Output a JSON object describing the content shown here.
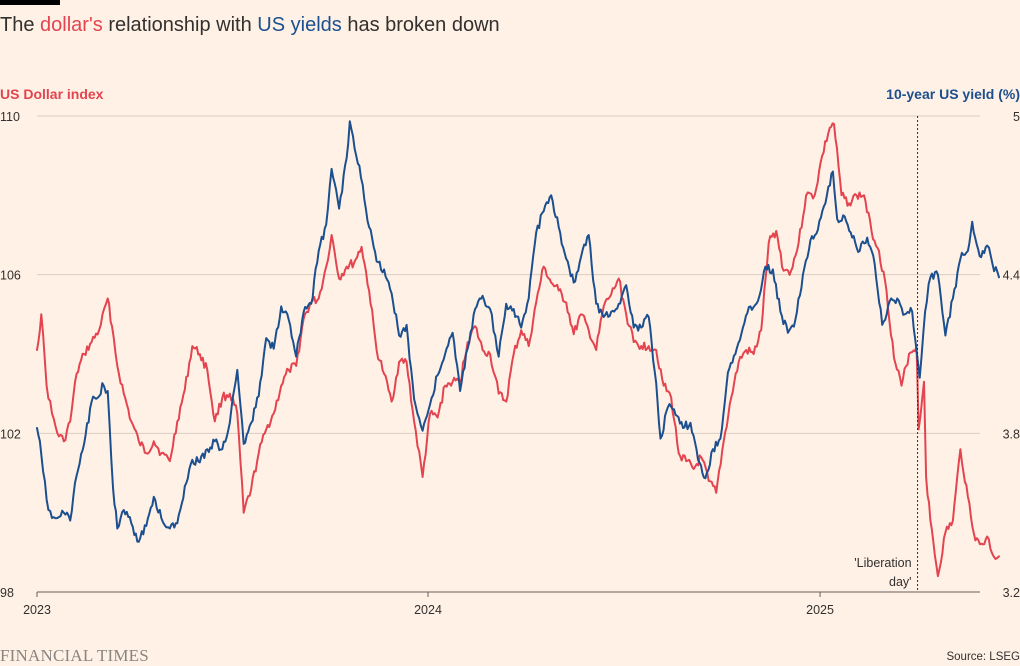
{
  "title": {
    "t1": "The ",
    "t2": "dollar's",
    "t3": " relationship with ",
    "t4": "US yields",
    "t5": " has broken down"
  },
  "footer": {
    "brand": "FINANCIAL TIMES",
    "source": "Source: LSEG"
  },
  "colors": {
    "background": "#fff1e5",
    "dollar": "#e3444f",
    "yield": "#1c4f8f",
    "grid": "#d9cdc2",
    "text": "#33302e"
  },
  "chart_data": {
    "type": "line",
    "title": "The dollar's relationship with US yields has broken down",
    "grid": true,
    "x_ticks": [
      "2023",
      "2024",
      "2025"
    ],
    "x_range": [
      "2023-01-01",
      "2025-06-30"
    ],
    "left_axis": {
      "label": "US Dollar index",
      "range": [
        98,
        110
      ],
      "ticks": [
        "98",
        "102",
        "106",
        "110"
      ]
    },
    "right_axis": {
      "label": "10-year US yield (%)",
      "range": [
        3.2,
        5
      ],
      "ticks": [
        "3.2",
        "3.8",
        "4.4",
        "5"
      ]
    },
    "annotation": {
      "date": "2025-04-02",
      "lines": [
        "'Liberation",
        "day'"
      ]
    },
    "series": [
      {
        "name": "US Dollar index",
        "axis": "left",
        "color": "#e3444f",
        "points": [
          [
            "2023-01-01",
            104.1
          ],
          [
            "2023-01-05",
            105.0
          ],
          [
            "2023-01-10",
            103.2
          ],
          [
            "2023-01-15",
            102.5
          ],
          [
            "2023-01-20",
            102.0
          ],
          [
            "2023-01-26",
            101.8
          ],
          [
            "2023-02-01",
            102.3
          ],
          [
            "2023-02-07",
            103.5
          ],
          [
            "2023-02-14",
            104.0
          ],
          [
            "2023-02-21",
            104.3
          ],
          [
            "2023-02-28",
            104.6
          ],
          [
            "2023-03-08",
            105.4
          ],
          [
            "2023-03-12",
            104.7
          ],
          [
            "2023-03-17",
            103.7
          ],
          [
            "2023-03-23",
            103.0
          ],
          [
            "2023-03-30",
            102.3
          ],
          [
            "2023-04-06",
            101.8
          ],
          [
            "2023-04-13",
            101.5
          ],
          [
            "2023-04-20",
            101.8
          ],
          [
            "2023-04-27",
            101.5
          ],
          [
            "2023-05-05",
            101.3
          ],
          [
            "2023-05-12",
            102.3
          ],
          [
            "2023-05-19",
            103.1
          ],
          [
            "2023-05-26",
            104.2
          ],
          [
            "2023-06-02",
            104.0
          ],
          [
            "2023-06-09",
            103.6
          ],
          [
            "2023-06-16",
            102.3
          ],
          [
            "2023-06-23",
            102.9
          ],
          [
            "2023-06-30",
            103.0
          ],
          [
            "2023-07-07",
            102.5
          ],
          [
            "2023-07-13",
            100.0
          ],
          [
            "2023-07-20",
            100.6
          ],
          [
            "2023-07-27",
            101.5
          ],
          [
            "2023-08-03",
            102.1
          ],
          [
            "2023-08-10",
            102.5
          ],
          [
            "2023-08-17",
            103.2
          ],
          [
            "2023-08-24",
            103.6
          ],
          [
            "2023-08-31",
            103.7
          ],
          [
            "2023-09-07",
            104.9
          ],
          [
            "2023-09-14",
            105.3
          ],
          [
            "2023-09-21",
            105.4
          ],
          [
            "2023-09-28",
            106.2
          ],
          [
            "2023-10-03",
            107.0
          ],
          [
            "2023-10-10",
            105.9
          ],
          [
            "2023-10-17",
            106.2
          ],
          [
            "2023-10-24",
            106.3
          ],
          [
            "2023-10-31",
            106.7
          ],
          [
            "2023-11-07",
            105.6
          ],
          [
            "2023-11-14",
            104.1
          ],
          [
            "2023-11-21",
            103.5
          ],
          [
            "2023-11-28",
            102.8
          ],
          [
            "2023-12-05",
            103.8
          ],
          [
            "2023-12-12",
            103.8
          ],
          [
            "2023-12-19",
            102.3
          ],
          [
            "2023-12-27",
            100.9
          ],
          [
            "2024-01-03",
            102.5
          ],
          [
            "2024-01-10",
            102.4
          ],
          [
            "2024-01-17",
            103.2
          ],
          [
            "2024-01-24",
            103.3
          ],
          [
            "2024-01-31",
            103.3
          ],
          [
            "2024-02-07",
            104.3
          ],
          [
            "2024-02-14",
            104.7
          ],
          [
            "2024-02-21",
            104.1
          ],
          [
            "2024-02-28",
            104.0
          ],
          [
            "2024-03-07",
            103.0
          ],
          [
            "2024-03-14",
            102.8
          ],
          [
            "2024-03-21",
            104.0
          ],
          [
            "2024-03-28",
            104.6
          ],
          [
            "2024-04-04",
            104.2
          ],
          [
            "2024-04-11",
            105.3
          ],
          [
            "2024-04-18",
            106.2
          ],
          [
            "2024-04-25",
            105.8
          ],
          [
            "2024-05-02",
            105.6
          ],
          [
            "2024-05-09",
            105.3
          ],
          [
            "2024-05-16",
            104.5
          ],
          [
            "2024-05-23",
            105.0
          ],
          [
            "2024-05-30",
            104.6
          ],
          [
            "2024-06-06",
            104.1
          ],
          [
            "2024-06-13",
            105.2
          ],
          [
            "2024-06-20",
            105.5
          ],
          [
            "2024-06-27",
            105.9
          ],
          [
            "2024-07-04",
            105.0
          ],
          [
            "2024-07-11",
            104.3
          ],
          [
            "2024-07-18",
            104.2
          ],
          [
            "2024-07-25",
            104.2
          ],
          [
            "2024-08-01",
            104.1
          ],
          [
            "2024-08-08",
            103.2
          ],
          [
            "2024-08-15",
            102.9
          ],
          [
            "2024-08-22",
            101.5
          ],
          [
            "2024-08-29",
            101.3
          ],
          [
            "2024-09-05",
            101.1
          ],
          [
            "2024-09-12",
            101.4
          ],
          [
            "2024-09-19",
            100.8
          ],
          [
            "2024-09-26",
            100.5
          ],
          [
            "2024-10-03",
            101.8
          ],
          [
            "2024-10-10",
            102.9
          ],
          [
            "2024-10-17",
            103.8
          ],
          [
            "2024-10-24",
            104.1
          ],
          [
            "2024-10-31",
            104.0
          ],
          [
            "2024-11-07",
            104.6
          ],
          [
            "2024-11-14",
            106.8
          ],
          [
            "2024-11-21",
            107.1
          ],
          [
            "2024-11-28",
            106.1
          ],
          [
            "2024-12-05",
            106.1
          ],
          [
            "2024-12-12",
            106.8
          ],
          [
            "2024-12-19",
            108.0
          ],
          [
            "2024-12-27",
            108.0
          ],
          [
            "2025-01-03",
            109.0
          ],
          [
            "2025-01-10",
            109.7
          ],
          [
            "2025-01-14",
            109.8
          ],
          [
            "2025-01-21",
            108.0
          ],
          [
            "2025-01-28",
            107.8
          ],
          [
            "2025-02-04",
            108.0
          ],
          [
            "2025-02-11",
            108.0
          ],
          [
            "2025-02-18",
            107.1
          ],
          [
            "2025-02-25",
            106.6
          ],
          [
            "2025-03-04",
            105.6
          ],
          [
            "2025-03-11",
            103.9
          ],
          [
            "2025-03-18",
            103.2
          ],
          [
            "2025-03-25",
            104.0
          ],
          [
            "2025-04-01",
            104.2
          ],
          [
            "2025-04-03",
            102.1
          ],
          [
            "2025-04-08",
            103.3
          ],
          [
            "2025-04-10",
            100.9
          ],
          [
            "2025-04-14",
            99.8
          ],
          [
            "2025-04-21",
            98.4
          ],
          [
            "2025-04-28",
            99.5
          ],
          [
            "2025-05-05",
            99.8
          ],
          [
            "2025-05-12",
            101.6
          ],
          [
            "2025-05-19",
            100.4
          ],
          [
            "2025-05-26",
            99.3
          ],
          [
            "2025-06-02",
            99.2
          ],
          [
            "2025-06-06",
            99.4
          ],
          [
            "2025-06-12",
            98.9
          ],
          [
            "2025-06-17",
            98.9
          ]
        ]
      },
      {
        "name": "10-year US yield (%)",
        "axis": "right",
        "color": "#1c4f8f",
        "points": [
          [
            "2023-01-01",
            3.82
          ],
          [
            "2023-01-05",
            3.72
          ],
          [
            "2023-01-10",
            3.55
          ],
          [
            "2023-01-15",
            3.48
          ],
          [
            "2023-01-20",
            3.48
          ],
          [
            "2023-01-26",
            3.5
          ],
          [
            "2023-02-01",
            3.47
          ],
          [
            "2023-02-07",
            3.64
          ],
          [
            "2023-02-14",
            3.76
          ],
          [
            "2023-02-21",
            3.92
          ],
          [
            "2023-02-28",
            3.94
          ],
          [
            "2023-03-03",
            3.99
          ],
          [
            "2023-03-08",
            3.96
          ],
          [
            "2023-03-13",
            3.59
          ],
          [
            "2023-03-17",
            3.44
          ],
          [
            "2023-03-23",
            3.51
          ],
          [
            "2023-03-30",
            3.46
          ],
          [
            "2023-04-06",
            3.39
          ],
          [
            "2023-04-13",
            3.45
          ],
          [
            "2023-04-20",
            3.56
          ],
          [
            "2023-04-27",
            3.48
          ],
          [
            "2023-05-05",
            3.44
          ],
          [
            "2023-05-12",
            3.46
          ],
          [
            "2023-05-19",
            3.6
          ],
          [
            "2023-05-26",
            3.7
          ],
          [
            "2023-06-02",
            3.69
          ],
          [
            "2023-06-09",
            3.74
          ],
          [
            "2023-06-16",
            3.77
          ],
          [
            "2023-06-23",
            3.74
          ],
          [
            "2023-06-30",
            3.84
          ],
          [
            "2023-07-07",
            4.04
          ],
          [
            "2023-07-13",
            3.76
          ],
          [
            "2023-07-20",
            3.84
          ],
          [
            "2023-07-27",
            3.94
          ],
          [
            "2023-08-03",
            4.16
          ],
          [
            "2023-08-10",
            4.12
          ],
          [
            "2023-08-17",
            4.28
          ],
          [
            "2023-08-24",
            4.23
          ],
          [
            "2023-08-31",
            4.09
          ],
          [
            "2023-09-07",
            4.26
          ],
          [
            "2023-09-14",
            4.29
          ],
          [
            "2023-09-21",
            4.49
          ],
          [
            "2023-09-28",
            4.59
          ],
          [
            "2023-10-03",
            4.8
          ],
          [
            "2023-10-10",
            4.65
          ],
          [
            "2023-10-17",
            4.84
          ],
          [
            "2023-10-20",
            4.98
          ],
          [
            "2023-10-26",
            4.85
          ],
          [
            "2023-11-01",
            4.74
          ],
          [
            "2023-11-07",
            4.58
          ],
          [
            "2023-11-14",
            4.45
          ],
          [
            "2023-11-21",
            4.42
          ],
          [
            "2023-11-28",
            4.33
          ],
          [
            "2023-12-05",
            4.17
          ],
          [
            "2023-12-12",
            4.21
          ],
          [
            "2023-12-19",
            3.93
          ],
          [
            "2023-12-27",
            3.81
          ],
          [
            "2024-01-03",
            3.91
          ],
          [
            "2024-01-10",
            4.02
          ],
          [
            "2024-01-17",
            4.1
          ],
          [
            "2024-01-24",
            4.18
          ],
          [
            "2024-01-31",
            3.96
          ],
          [
            "2024-02-07",
            4.12
          ],
          [
            "2024-02-14",
            4.27
          ],
          [
            "2024-02-21",
            4.32
          ],
          [
            "2024-02-28",
            4.27
          ],
          [
            "2024-03-07",
            4.09
          ],
          [
            "2024-03-14",
            4.29
          ],
          [
            "2024-03-21",
            4.27
          ],
          [
            "2024-03-28",
            4.2
          ],
          [
            "2024-04-04",
            4.31
          ],
          [
            "2024-04-11",
            4.56
          ],
          [
            "2024-04-18",
            4.64
          ],
          [
            "2024-04-25",
            4.7
          ],
          [
            "2024-05-02",
            4.58
          ],
          [
            "2024-05-09",
            4.46
          ],
          [
            "2024-05-16",
            4.37
          ],
          [
            "2024-05-23",
            4.47
          ],
          [
            "2024-05-30",
            4.55
          ],
          [
            "2024-06-06",
            4.29
          ],
          [
            "2024-06-13",
            4.24
          ],
          [
            "2024-06-20",
            4.26
          ],
          [
            "2024-06-27",
            4.29
          ],
          [
            "2024-07-04",
            4.36
          ],
          [
            "2024-07-11",
            4.2
          ],
          [
            "2024-07-18",
            4.2
          ],
          [
            "2024-07-25",
            4.24
          ],
          [
            "2024-08-01",
            3.99
          ],
          [
            "2024-08-05",
            3.78
          ],
          [
            "2024-08-12",
            3.9
          ],
          [
            "2024-08-19",
            3.87
          ],
          [
            "2024-08-26",
            3.82
          ],
          [
            "2024-09-02",
            3.84
          ],
          [
            "2024-09-09",
            3.7
          ],
          [
            "2024-09-16",
            3.63
          ],
          [
            "2024-09-23",
            3.74
          ],
          [
            "2024-09-30",
            3.78
          ],
          [
            "2024-10-07",
            4.03
          ],
          [
            "2024-10-14",
            4.1
          ],
          [
            "2024-10-21",
            4.2
          ],
          [
            "2024-10-28",
            4.28
          ],
          [
            "2024-11-04",
            4.3
          ],
          [
            "2024-11-11",
            4.43
          ],
          [
            "2024-11-18",
            4.42
          ],
          [
            "2024-11-25",
            4.26
          ],
          [
            "2024-12-02",
            4.18
          ],
          [
            "2024-12-09",
            4.23
          ],
          [
            "2024-12-16",
            4.4
          ],
          [
            "2024-12-23",
            4.53
          ],
          [
            "2024-12-30",
            4.57
          ],
          [
            "2025-01-06",
            4.67
          ],
          [
            "2025-01-13",
            4.79
          ],
          [
            "2025-01-17",
            4.61
          ],
          [
            "2025-01-24",
            4.62
          ],
          [
            "2025-01-31",
            4.54
          ],
          [
            "2025-02-07",
            4.49
          ],
          [
            "2025-02-14",
            4.54
          ],
          [
            "2025-02-21",
            4.44
          ],
          [
            "2025-02-28",
            4.21
          ],
          [
            "2025-03-07",
            4.3
          ],
          [
            "2025-03-14",
            4.31
          ],
          [
            "2025-03-21",
            4.25
          ],
          [
            "2025-03-28",
            4.26
          ],
          [
            "2025-04-04",
            4.01
          ],
          [
            "2025-04-09",
            4.26
          ],
          [
            "2025-04-14",
            4.39
          ],
          [
            "2025-04-21",
            4.4
          ],
          [
            "2025-04-28",
            4.17
          ],
          [
            "2025-05-05",
            4.31
          ],
          [
            "2025-05-12",
            4.46
          ],
          [
            "2025-05-19",
            4.49
          ],
          [
            "2025-05-23",
            4.6
          ],
          [
            "2025-05-30",
            4.47
          ],
          [
            "2025-06-06",
            4.51
          ],
          [
            "2025-06-11",
            4.44
          ],
          [
            "2025-06-17",
            4.39
          ]
        ]
      }
    ]
  }
}
